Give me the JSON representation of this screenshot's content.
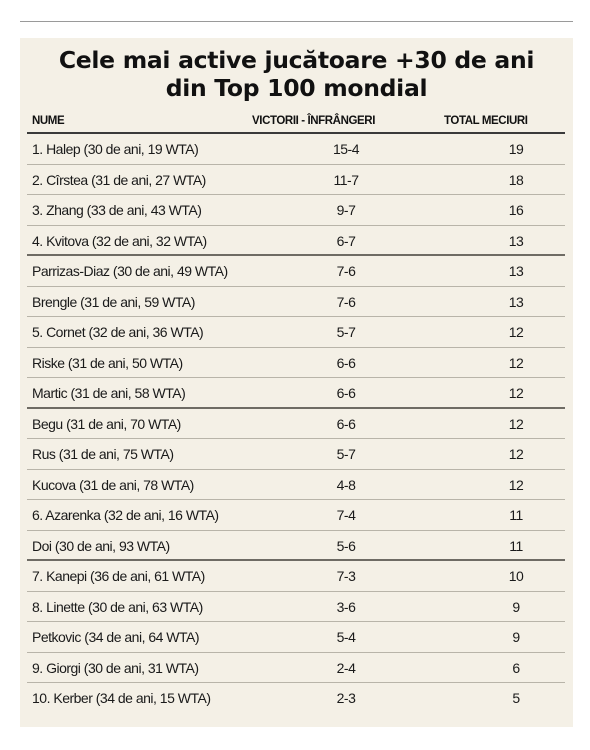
{
  "chart_data": {
    "type": "table",
    "title_lines": [
      "Cele mai active jucătoare +30 de ani",
      "din Top 100 mondial"
    ],
    "columns": [
      "NUME",
      "VICTORII - ÎNFRÂNGERI",
      "TOTAL MECIURI"
    ],
    "rows": [
      {
        "name": "1. Halep (30 de ani, 19 WTA)",
        "wl": "15-4",
        "total": "19"
      },
      {
        "name": "2. Cîrstea (31 de ani, 27 WTA)",
        "wl": "11-7",
        "total": "18"
      },
      {
        "name": "3. Zhang (33 de ani, 43 WTA)",
        "wl": "9-7",
        "total": "16"
      },
      {
        "name": "4. Kvitova (32 de ani, 32 WTA)",
        "wl": "6-7",
        "total": "13"
      },
      {
        "name": "Parrizas-Diaz (30 de ani, 49 WTA)",
        "wl": "7-6",
        "total": "13"
      },
      {
        "name": "Brengle (31 de ani, 59 WTA)",
        "wl": "7-6",
        "total": "13"
      },
      {
        "name": "5. Cornet (32 de ani, 36 WTA)",
        "wl": "5-7",
        "total": "12"
      },
      {
        "name": "Riske (31 de ani, 50 WTA)",
        "wl": "6-6",
        "total": "12"
      },
      {
        "name": "Martic (31 de ani, 58 WTA)",
        "wl": "6-6",
        "total": "12"
      },
      {
        "name": "Begu (31 de ani, 70 WTA)",
        "wl": "6-6",
        "total": "12"
      },
      {
        "name": "Rus (31 de ani, 75 WTA)",
        "wl": "5-7",
        "total": "12"
      },
      {
        "name": "Kucova (31 de ani, 78 WTA)",
        "wl": "4-8",
        "total": "12"
      },
      {
        "name": "6. Azarenka (32 de ani, 16 WTA)",
        "wl": "7-4",
        "total": "11"
      },
      {
        "name": "Doi (30 de ani, 93 WTA)",
        "wl": "5-6",
        "total": "11"
      },
      {
        "name": "7. Kanepi (36 de ani, 61 WTA)",
        "wl": "7-3",
        "total": "10"
      },
      {
        "name": "8. Linette (30 de ani, 63 WTA)",
        "wl": "3-6",
        "total": "9"
      },
      {
        "name": "Petkovic (34 de ani, 64 WTA)",
        "wl": "5-4",
        "total": "9"
      },
      {
        "name": "9. Giorgi (30 de ani, 31 WTA)",
        "wl": "2-4",
        "total": "6"
      },
      {
        "name": "10. Kerber (34 de ani, 15 WTA)",
        "wl": "2-3",
        "total": "5"
      }
    ]
  },
  "colors": {
    "panel_background": "#f4f0e6",
    "text": "#1a1a1a"
  }
}
